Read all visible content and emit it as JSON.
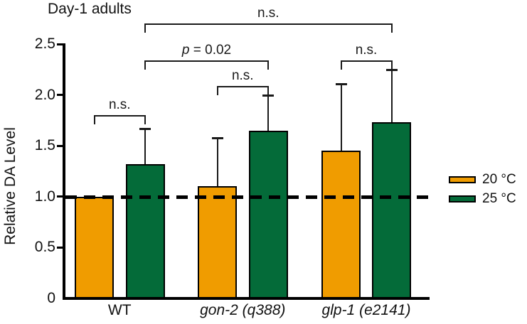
{
  "title": "Day-1 adults",
  "chart_data": {
    "type": "bar",
    "title": "Day-1 adults",
    "xlabel": "",
    "ylabel": "Relative DA Level",
    "ylim": [
      0,
      2.5
    ],
    "ytick_step": 0.5,
    "ytick_labels": [
      "0",
      "0.5",
      "1.0",
      "1.5",
      "2.0",
      "2.5"
    ],
    "grid": false,
    "legend_position": "right-middle",
    "categories": [
      {
        "label": "WT",
        "italic": false
      },
      {
        "label": "gon-2 (q388)",
        "italic": true
      },
      {
        "label": "glp-1 (e2141)",
        "italic": true
      }
    ],
    "series": [
      {
        "name": "20 °C",
        "color": "#F09C00",
        "values": [
          1.0,
          1.1,
          1.45
        ],
        "errors_upper": [
          null,
          0.48,
          0.66
        ]
      },
      {
        "name": "25 °C",
        "color": "#046B39",
        "values": [
          1.32,
          1.65,
          1.73
        ],
        "errors_upper": [
          0.35,
          0.35,
          0.52
        ]
      }
    ],
    "reference_line": {
      "y": 1.0,
      "style": "dashed",
      "color": "#000000"
    },
    "significance_brackets": [
      {
        "label": "n.s.",
        "italic_part": "",
        "from": {
          "group": 0,
          "series": 0
        },
        "to": {
          "group": 0,
          "series": 1
        },
        "height": 1.8
      },
      {
        "label": "n.s.",
        "italic_part": "",
        "from": {
          "group": 1,
          "series": 0
        },
        "to": {
          "group": 1,
          "series": 1
        },
        "height": 2.09
      },
      {
        "label": "p = 0.02",
        "italic_part": "p",
        "from": {
          "group": 0,
          "series": 1
        },
        "to": {
          "group": 1,
          "series": 1
        },
        "height": 2.34
      },
      {
        "label": "n.s.",
        "italic_part": "",
        "from": {
          "group": 2,
          "series": 0
        },
        "to": {
          "group": 2,
          "series": 1
        },
        "height": 2.34
      },
      {
        "label": "n.s.",
        "italic_part": "",
        "from": {
          "group": 0,
          "series": 1
        },
        "to": {
          "group": 2,
          "series": 1
        },
        "height": 2.7
      }
    ]
  }
}
